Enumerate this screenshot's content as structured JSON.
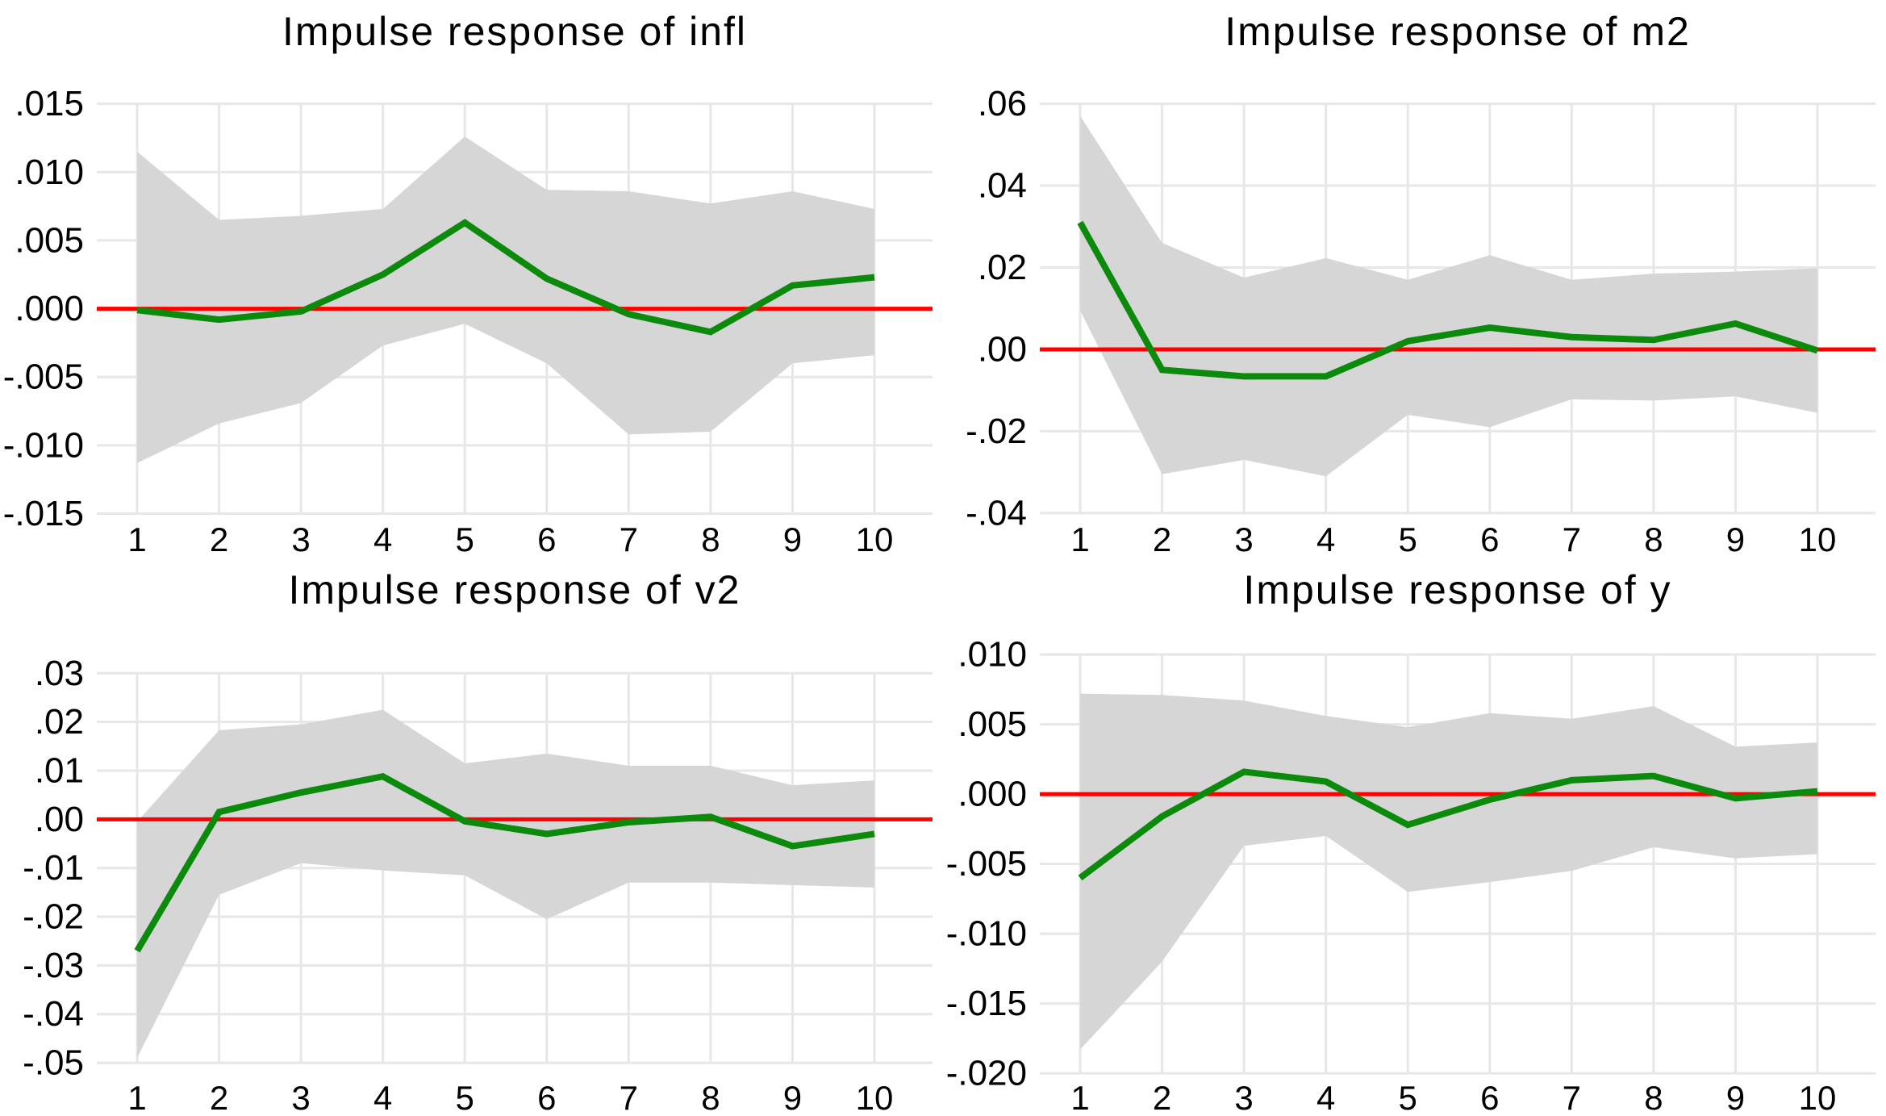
{
  "palette": {
    "background": "#ffffff",
    "irf_line": "#0c8a0c",
    "zero_line": "#ff0000",
    "band": "#d6d6d6",
    "grid": "#e7e7e7",
    "text": "#000000"
  },
  "chart_data": [
    {
      "type": "line",
      "title": "Impulse response of infl",
      "xlabel": "",
      "ylabel": "",
      "x": [
        1,
        2,
        3,
        4,
        5,
        6,
        7,
        8,
        9,
        10
      ],
      "xtick_labels": [
        "1",
        "2",
        "3",
        "4",
        "5",
        "6",
        "7",
        "8",
        "9",
        "10"
      ],
      "series": [
        {
          "name": "impulse response",
          "values": [
            -0.0001,
            -0.0008,
            -0.0002,
            0.0025,
            0.0063,
            0.0022,
            -0.0004,
            -0.0017,
            0.0017,
            0.0023
          ]
        },
        {
          "name": "confidence band upper",
          "values": [
            0.0115,
            0.0065,
            0.0068,
            0.0073,
            0.0126,
            0.0087,
            0.0086,
            0.0077,
            0.0086,
            0.0073
          ]
        },
        {
          "name": "confidence band lower",
          "values": [
            -0.0113,
            -0.0084,
            -0.0069,
            -0.0027,
            -0.0011,
            -0.004,
            -0.0092,
            -0.009,
            -0.004,
            -0.0034
          ]
        }
      ],
      "yticks": [
        0.015,
        0.01,
        0.005,
        0.0,
        -0.005,
        -0.01,
        -0.015
      ],
      "ytick_labels": [
        ".015",
        ".010",
        ".005",
        ".000",
        "-.005",
        "-.010",
        "-.015"
      ],
      "ylim": [
        -0.0155,
        0.0174
      ],
      "grid": true,
      "zero_line": 0,
      "legend_position": "none"
    },
    {
      "type": "line",
      "title": "Impulse response of m2",
      "xlabel": "",
      "ylabel": "",
      "x": [
        1,
        2,
        3,
        4,
        5,
        6,
        7,
        8,
        9,
        10
      ],
      "xtick_labels": [
        "1",
        "2",
        "3",
        "4",
        "5",
        "6",
        "7",
        "8",
        "9",
        "10"
      ],
      "series": [
        {
          "name": "impulse response",
          "values": [
            0.031,
            -0.005,
            -0.0066,
            -0.0066,
            0.002,
            0.0053,
            0.003,
            0.0023,
            0.0063,
            -0.0003
          ]
        },
        {
          "name": "confidence band upper",
          "values": [
            0.057,
            0.026,
            0.0175,
            0.0223,
            0.017,
            0.023,
            0.017,
            0.0185,
            0.019,
            0.0198
          ]
        },
        {
          "name": "confidence band lower",
          "values": [
            0.0095,
            -0.0305,
            -0.027,
            -0.031,
            -0.016,
            -0.019,
            -0.0122,
            -0.0125,
            -0.0115,
            -0.0155
          ]
        }
      ],
      "yticks": [
        0.06,
        0.04,
        0.02,
        0.0,
        -0.02,
        -0.04
      ],
      "ytick_labels": [
        ".06",
        ".04",
        ".02",
        ".00",
        "-.02",
        "-.04"
      ],
      "ylim": [
        -0.0418,
        0.068
      ],
      "grid": true,
      "zero_line": 0,
      "legend_position": "none"
    },
    {
      "type": "line",
      "title": "Impulse response of v2",
      "xlabel": "",
      "ylabel": "",
      "x": [
        1,
        2,
        3,
        4,
        5,
        6,
        7,
        8,
        9,
        10
      ],
      "xtick_labels": [
        "1",
        "2",
        "3",
        "4",
        "5",
        "6",
        "7",
        "8",
        "9",
        "10"
      ],
      "series": [
        {
          "name": "impulse response",
          "values": [
            -0.027,
            0.0015,
            0.0055,
            0.0088,
            -0.0004,
            -0.003,
            -0.0006,
            0.0005,
            -0.0055,
            -0.003
          ]
        },
        {
          "name": "confidence band upper",
          "values": [
            -0.0005,
            0.0183,
            0.0195,
            0.0225,
            0.0115,
            0.0135,
            0.011,
            0.011,
            0.007,
            0.008
          ]
        },
        {
          "name": "confidence band lower",
          "values": [
            -0.049,
            -0.0155,
            -0.009,
            -0.0105,
            -0.0115,
            -0.0205,
            -0.013,
            -0.013,
            -0.0135,
            -0.014
          ]
        }
      ],
      "yticks": [
        0.03,
        0.02,
        0.01,
        0.0,
        -0.01,
        -0.02,
        -0.03,
        -0.04,
        -0.05
      ],
      "ytick_labels": [
        ".03",
        ".02",
        ".01",
        ".00",
        "-.01",
        "-.02",
        "-.03",
        "-.04",
        "-.05"
      ],
      "ylim": [
        -0.0533,
        0.039
      ],
      "grid": true,
      "zero_line": 0,
      "legend_position": "none"
    },
    {
      "type": "line",
      "title": "Impulse response of y",
      "xlabel": "",
      "ylabel": "",
      "x": [
        1,
        2,
        3,
        4,
        5,
        6,
        7,
        8,
        9,
        10
      ],
      "xtick_labels": [
        "1",
        "2",
        "3",
        "4",
        "5",
        "6",
        "7",
        "8",
        "9",
        "10"
      ],
      "series": [
        {
          "name": "impulse response",
          "values": [
            -0.006,
            -0.0016,
            0.0016,
            0.0009,
            -0.0022,
            -0.0004,
            0.001,
            0.0013,
            -0.0003,
            0.0002
          ]
        },
        {
          "name": "confidence band upper",
          "values": [
            0.0072,
            0.0071,
            0.0067,
            0.0056,
            0.0048,
            0.0058,
            0.0054,
            0.0063,
            0.0034,
            0.0037
          ]
        },
        {
          "name": "confidence band lower",
          "values": [
            -0.0183,
            -0.012,
            -0.0037,
            -0.003,
            -0.007,
            -0.0063,
            -0.0055,
            -0.0038,
            -0.0046,
            -0.0043
          ]
        }
      ],
      "yticks": [
        0.01,
        0.005,
        0.0,
        -0.005,
        -0.01,
        -0.015,
        -0.02
      ],
      "ytick_labels": [
        ".010",
        ".005",
        ".000",
        "-.005",
        "-.010",
        "-.015",
        "-.020"
      ],
      "ylim": [
        -0.0204,
        0.0118
      ],
      "grid": true,
      "zero_line": 0,
      "legend_position": "none"
    }
  ]
}
